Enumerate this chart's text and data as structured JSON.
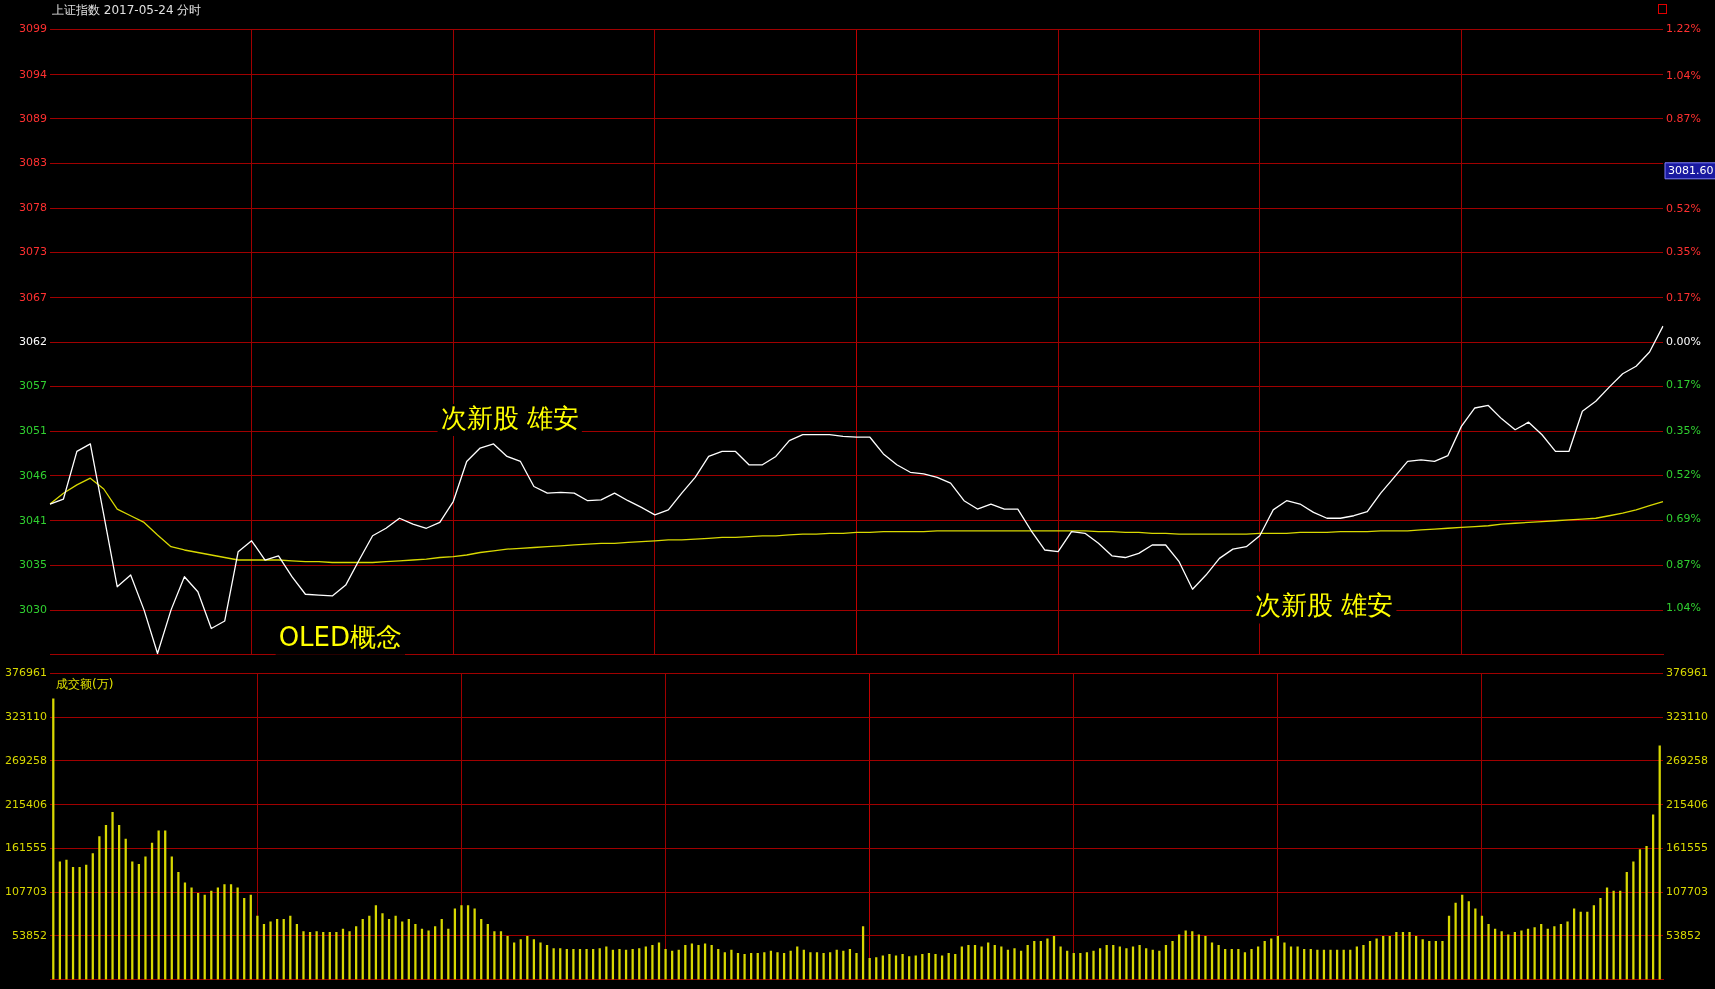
{
  "chart_data": [
    {
      "type": "line",
      "title": "上证指数   2017-05-24 分时",
      "categories": [
        null,
        null,
        null,
        null,
        null,
        null,
        null,
        null,
        null,
        null,
        null,
        null,
        null,
        null,
        null,
        null,
        null,
        null,
        null,
        null,
        null,
        null,
        null,
        null,
        null,
        null,
        null,
        null,
        null,
        null,
        null,
        null,
        null,
        null,
        null,
        null,
        null,
        null,
        null,
        null,
        null,
        null,
        null,
        null,
        null,
        null,
        null,
        null,
        null,
        null,
        null,
        null,
        null,
        null,
        null,
        null,
        null,
        null,
        null,
        null,
        null,
        null,
        null,
        null,
        null,
        null,
        null,
        null,
        null,
        null,
        null,
        null,
        null,
        null,
        null,
        null,
        null,
        null,
        null,
        null,
        null,
        null,
        null,
        null,
        null,
        null,
        null,
        null,
        null,
        null,
        null,
        null,
        null,
        null,
        null,
        null,
        null,
        null,
        null,
        null,
        null,
        null,
        null,
        null,
        null,
        null,
        null,
        null,
        null,
        null,
        null,
        null,
        null,
        null,
        null,
        null,
        null,
        null,
        null,
        null,
        null
      ],
      "ylim": [
        3024.7,
        3099.5
      ],
      "yticks": [
        {
          "value": 3099.5,
          "label": "3099"
        },
        {
          "value": 3094.1,
          "label": "3094"
        },
        {
          "value": 3088.8,
          "label": "3089"
        },
        {
          "value": 3083.5,
          "label": "3083"
        },
        {
          "value": 3078.1,
          "label": "3078"
        },
        {
          "value": 3072.8,
          "label": "3073"
        },
        {
          "value": 3067.4,
          "label": "3067"
        },
        {
          "value": 3062.1,
          "label": "3062"
        },
        {
          "value": 3056.8,
          "label": "3057"
        },
        {
          "value": 3051.4,
          "label": "3051"
        },
        {
          "value": 3046.1,
          "label": "3046"
        },
        {
          "value": 3040.7,
          "label": "3041"
        },
        {
          "value": 3035.4,
          "label": "3035"
        },
        {
          "value": 3030.0,
          "label": "3030"
        }
      ],
      "y2lim": [
        -1.22,
        1.22
      ],
      "y2ticks": [
        {
          "value": 1.22,
          "label": "1.22%"
        },
        {
          "value": 1.04,
          "label": "1.04%"
        },
        {
          "value": 0.87,
          "label": "0.87%"
        },
        {
          "value": 0.69,
          "label": null
        },
        {
          "value": 0.52,
          "label": "0.52%"
        },
        {
          "value": 0.35,
          "label": "0.35%"
        },
        {
          "value": 0.17,
          "label": "0.17%"
        },
        {
          "value": 0,
          "label": "0.00%"
        },
        {
          "value": -0.17,
          "label": "0.17%"
        },
        {
          "value": -0.35,
          "label": "0.35%"
        },
        {
          "value": -0.52,
          "label": "0.52%"
        },
        {
          "value": -0.69,
          "label": "0.69%"
        },
        {
          "value": -0.87,
          "label": "0.87%"
        },
        {
          "value": -1.04,
          "label": "1.04%"
        }
      ],
      "tick_labels": "y",
      "grid": true,
      "legend": false,
      "marker": "none",
      "annotations": [
        "次新股 雄安",
        "OLED概念",
        "次新股 雄安",
        "3081.60"
      ],
      "series": [
        {
          "color": "#ffffff",
          "values": [
            3042.7,
            3043.3,
            3049.0,
            3049.9,
            3041.4,
            3032.8,
            3034.2,
            3030.0,
            3024.8,
            3030.0,
            3034.0,
            3032.2,
            3027.8,
            3028.7,
            3037.0,
            3038.3,
            3036.0,
            3036.5,
            3034.0,
            3031.9,
            3031.8,
            3031.7,
            3033.0,
            3036.0,
            3038.9,
            3039.8,
            3041.0,
            3040.3,
            3039.8,
            3040.5,
            3043.0,
            3047.8,
            3049.4,
            3049.9,
            3048.4,
            3047.8,
            3044.8,
            3044.0,
            3044.1,
            3044.0,
            3043.1,
            3043.2,
            3044.0,
            3043.1,
            3042.3,
            3041.4,
            3042.0,
            3044.0,
            3045.9,
            3048.4,
            3049.0,
            3049.0,
            3047.4,
            3047.4,
            3048.4,
            3050.3,
            3051.0,
            3051.0,
            3051.0,
            3050.8,
            3050.7,
            3050.7,
            3048.7,
            3047.4,
            3046.5,
            3046.3,
            3045.9,
            3045.2,
            3043.1,
            3042.1,
            3042.7,
            3042.1,
            3042.1,
            3039.5,
            3037.2,
            3037.0,
            3039.4,
            3039.2,
            3038.0,
            3036.5,
            3036.3,
            3036.8,
            3037.8,
            3037.8,
            3035.8,
            3032.5,
            3034.2,
            3036.2,
            3037.3,
            3037.6,
            3038.9,
            3042.0,
            3043.1,
            3042.7,
            3041.7,
            3041.0,
            3041.0,
            3041.3,
            3041.8,
            3044.0,
            3045.9,
            3047.8,
            3048.0,
            3047.8,
            3048.5,
            3052.0,
            3054.2,
            3054.5,
            3052.9,
            3051.6,
            3052.5,
            3051.0,
            3049.0,
            3049.0,
            3053.8,
            3055.0,
            3056.7,
            3058.3,
            3059.2,
            3060.9,
            3064.0
          ]
        },
        {
          "color": "#d8d800",
          "values": [
            3042.7,
            3044.0,
            3045.0,
            3045.8,
            3044.5,
            3042.1,
            3041.3,
            3040.5,
            3039.0,
            3037.6,
            3037.2,
            3036.9,
            3036.6,
            3036.3,
            3036.0,
            3036.0,
            3036.0,
            3036.0,
            3035.9,
            3035.8,
            3035.8,
            3035.7,
            3035.7,
            3035.7,
            3035.7,
            3035.8,
            3035.9,
            3036.0,
            3036.1,
            3036.3,
            3036.4,
            3036.6,
            3036.9,
            3037.1,
            3037.3,
            3037.4,
            3037.5,
            3037.6,
            3037.7,
            3037.8,
            3037.9,
            3038.0,
            3038.0,
            3038.1,
            3038.2,
            3038.3,
            3038.4,
            3038.4,
            3038.5,
            3038.6,
            3038.7,
            3038.7,
            3038.8,
            3038.9,
            3038.9,
            3039.0,
            3039.1,
            3039.1,
            3039.2,
            3039.2,
            3039.3,
            3039.3,
            3039.4,
            3039.4,
            3039.4,
            3039.4,
            3039.5,
            3039.5,
            3039.5,
            3039.5,
            3039.5,
            3039.5,
            3039.5,
            3039.5,
            3039.5,
            3039.5,
            3039.5,
            3039.5,
            3039.4,
            3039.4,
            3039.3,
            3039.3,
            3039.2,
            3039.2,
            3039.1,
            3039.1,
            3039.1,
            3039.1,
            3039.1,
            3039.1,
            3039.2,
            3039.2,
            3039.2,
            3039.3,
            3039.3,
            3039.3,
            3039.4,
            3039.4,
            3039.4,
            3039.5,
            3039.5,
            3039.5,
            3039.6,
            3039.7,
            3039.8,
            3039.9,
            3040.0,
            3040.1,
            3040.3,
            3040.4,
            3040.5,
            3040.6,
            3040.7,
            3040.8,
            3040.9,
            3041.0,
            3041.3,
            3041.6,
            3042.0,
            3042.5,
            3043.0
          ]
        }
      ]
    },
    {
      "type": "bar",
      "title": "成交额(万)",
      "ylim": [
        0,
        376961
      ],
      "yticks": [
        53852,
        107703,
        161555,
        215406,
        269258,
        323110,
        376961
      ],
      "y2lim": [
        0,
        376961
      ],
      "y2ticks": [
        53852,
        107703,
        161555,
        215406,
        269258,
        323110,
        376961
      ],
      "tick_labels": "y",
      "grid": true,
      "legend": false,
      "categories": [
        null,
        null,
        null,
        null,
        null,
        null,
        null,
        null,
        null,
        null,
        null,
        null,
        null,
        null,
        null,
        null,
        null,
        null,
        null,
        null,
        null,
        null,
        null,
        null,
        null,
        null,
        null,
        null,
        null,
        null,
        null,
        null,
        null,
        null,
        null,
        null,
        null,
        null,
        null,
        null,
        null,
        null,
        null,
        null,
        null,
        null,
        null,
        null,
        null,
        null,
        null,
        null,
        null,
        null,
        null,
        null,
        null,
        null,
        null,
        null,
        null,
        null,
        null,
        null,
        null,
        null,
        null,
        null,
        null,
        null,
        null,
        null,
        null,
        null,
        null,
        null,
        null,
        null,
        null,
        null,
        null,
        null,
        null,
        null,
        null,
        null,
        null,
        null,
        null,
        null,
        null,
        null,
        null,
        null,
        null,
        null,
        null,
        null,
        null,
        null,
        null,
        null,
        null,
        null,
        null,
        null,
        null,
        null,
        null,
        null,
        null,
        null,
        null,
        null,
        null,
        null,
        null,
        null,
        null,
        null,
        null,
        null,
        null,
        null,
        null,
        null,
        null,
        null,
        null,
        null,
        null,
        null,
        null,
        null,
        null,
        null,
        null,
        null,
        null,
        null,
        null,
        null,
        null,
        null,
        null,
        null,
        null,
        null,
        null,
        null,
        null,
        null,
        null,
        null,
        null,
        null,
        null,
        null,
        null,
        null,
        null,
        null,
        null,
        null,
        null,
        null,
        null,
        null,
        null,
        null,
        null,
        null,
        null,
        null,
        null,
        null,
        null,
        null,
        null,
        null,
        null,
        null,
        null,
        null,
        null,
        null,
        null,
        null,
        null,
        null,
        null,
        null,
        null,
        null,
        null,
        null,
        null,
        null,
        null,
        null,
        null,
        null,
        null,
        null,
        null,
        null,
        null,
        null,
        null,
        null,
        null,
        null,
        null,
        null,
        null,
        null,
        null,
        null,
        null,
        null,
        null,
        null,
        null,
        null,
        null,
        null,
        null,
        null,
        null,
        null,
        null,
        null,
        null,
        null,
        null,
        null,
        null,
        null,
        null,
        null,
        null,
        null,
        null,
        null,
        null
      ],
      "series": [
        {
          "color": "#d8d800",
          "values": [
            346000,
            145000,
            147000,
            138000,
            138000,
            141000,
            155000,
            176000,
            190000,
            206000,
            190000,
            173000,
            145000,
            142000,
            151000,
            168000,
            183000,
            183000,
            151000,
            132000,
            119000,
            113000,
            106000,
            104000,
            109000,
            113000,
            117000,
            117000,
            113000,
            100000,
            104000,
            78000,
            68000,
            71000,
            74000,
            74000,
            78000,
            68000,
            59000,
            58000,
            59000,
            58000,
            58000,
            58000,
            62000,
            59000,
            65000,
            74000,
            78000,
            91000,
            81000,
            74000,
            78000,
            71000,
            74000,
            68000,
            62000,
            60000,
            65000,
            74000,
            62000,
            87000,
            91000,
            91000,
            87000,
            74000,
            68000,
            59000,
            59000,
            53000,
            45000,
            49000,
            53000,
            49000,
            45000,
            42000,
            38000,
            38000,
            37000,
            37000,
            37000,
            37000,
            37000,
            38000,
            40000,
            36000,
            37000,
            36000,
            37000,
            38000,
            40000,
            42000,
            45000,
            37000,
            35000,
            36000,
            42000,
            44000,
            42000,
            44000,
            42000,
            37000,
            33000,
            36000,
            32000,
            31000,
            32000,
            32000,
            33000,
            35000,
            33000,
            32000,
            35000,
            40000,
            36000,
            33000,
            33000,
            32000,
            33000,
            36000,
            35000,
            37000,
            32000,
            65000,
            26000,
            27000,
            29000,
            31000,
            29000,
            31000,
            28000,
            29000,
            31000,
            32000,
            31000,
            29000,
            32000,
            31000,
            40000,
            42000,
            42000,
            40000,
            45000,
            42000,
            40000,
            36000,
            38000,
            35000,
            42000,
            47000,
            47000,
            50000,
            53000,
            40000,
            35000,
            32000,
            32000,
            33000,
            35000,
            38000,
            42000,
            42000,
            40000,
            38000,
            40000,
            42000,
            38000,
            36000,
            35000,
            42000,
            47000,
            55000,
            60000,
            59000,
            55000,
            53000,
            45000,
            42000,
            37000,
            37000,
            37000,
            33000,
            37000,
            40000,
            47000,
            50000,
            53000,
            45000,
            40000,
            40000,
            37000,
            37000,
            36000,
            36000,
            36000,
            36000,
            36000,
            36000,
            40000,
            42000,
            47000,
            50000,
            53000,
            53000,
            58000,
            58000,
            58000,
            53000,
            49000,
            47000,
            47000,
            47000,
            78000,
            94000,
            104000,
            96000,
            87000,
            78000,
            68000,
            62000,
            59000,
            55000,
            58000,
            60000,
            62000,
            64000,
            68000,
            62000,
            65000,
            68000,
            71000,
            87000,
            83000,
            83000,
            91000,
            100000,
            113000,
            109000,
            109000,
            132000,
            145000,
            160000,
            164000,
            203000,
            288000
          ]
        }
      ]
    }
  ]
}
